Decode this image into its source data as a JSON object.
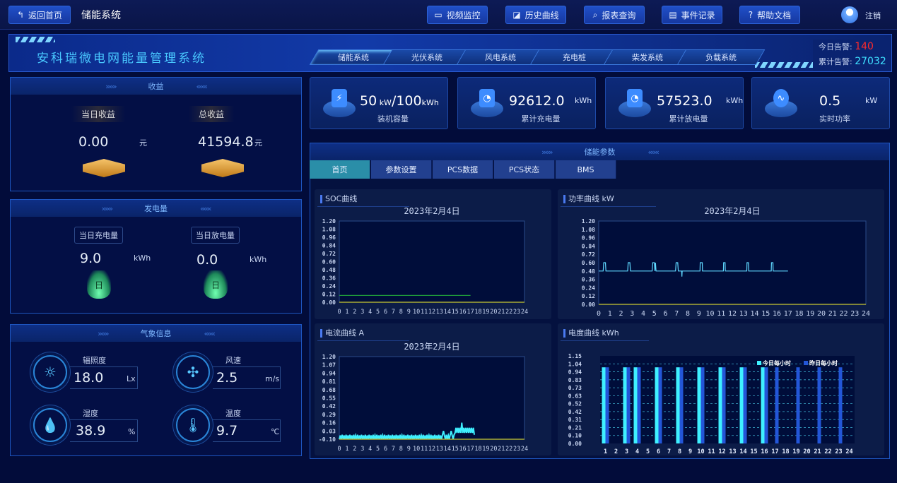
{
  "topbar": {
    "back_label": "返回首页",
    "page_title": "储能系统",
    "nav": [
      {
        "label": "视频监控",
        "icon": "video-icon"
      },
      {
        "label": "历史曲线",
        "icon": "chart-icon"
      },
      {
        "label": "报表查询",
        "icon": "search-icon"
      },
      {
        "label": "事件记录",
        "icon": "document-icon"
      },
      {
        "label": "帮助文档",
        "icon": "help-icon"
      }
    ],
    "logout_label": "注销"
  },
  "banner": {
    "title": "安科瑞微电网能量管理系统",
    "system_tabs": [
      "储能系统",
      "光伏系统",
      "风电系统",
      "充电桩",
      "柴发系统",
      "负载系统"
    ],
    "active_tab": 0,
    "alarm_today_label": "今日告警:",
    "alarm_today": "140",
    "alarm_total_label": "累计告警:",
    "alarm_total": "27032",
    "colors": {
      "alarm_today": "#ff2a2a",
      "alarm_total": "#3fe0ff"
    }
  },
  "income": {
    "title": "收益",
    "today_label": "当日收益",
    "today_value": "0.00",
    "today_unit": "元",
    "total_label": "总收益",
    "total_value": "41594.8",
    "total_unit": "元"
  },
  "generation": {
    "title": "发电量",
    "charge_label": "当日充电量",
    "charge_value": "9.0",
    "charge_unit": "kWh",
    "discharge_label": "当日放电量",
    "discharge_value": "0.0",
    "discharge_unit": "kWh",
    "icon_glyph": "日"
  },
  "weather": {
    "title": "气象信息",
    "items": [
      {
        "label": "辐照度",
        "value": "18.0",
        "unit": "Lx",
        "icon": "sun-icon"
      },
      {
        "label": "风速",
        "value": "2.5",
        "unit": "m/s",
        "icon": "fan-icon"
      },
      {
        "label": "湿度",
        "value": "38.9",
        "unit": "%",
        "icon": "humidity-icon"
      },
      {
        "label": "温度",
        "value": "9.7",
        "unit": "℃",
        "icon": "thermometer-icon"
      }
    ]
  },
  "kpis": [
    {
      "value": "50",
      "unit": "kW",
      "value2": "/100",
      "unit2": "kWh",
      "label": "装机容量",
      "icon": "battery-icon"
    },
    {
      "value": "92612.0",
      "unit": "kWh",
      "label": "累计充电量",
      "icon": "meter-icon"
    },
    {
      "value": "57523.0",
      "unit": "kWh",
      "label": "累计放电量",
      "icon": "meter-icon"
    },
    {
      "value": "0.5",
      "unit": "kW",
      "label": "实时功率",
      "icon": "pulse-icon"
    }
  ],
  "params": {
    "title": "储能参数",
    "tabs": [
      "首页",
      "参数设置",
      "PCS数据",
      "PCS状态",
      "BMS"
    ],
    "active_tab": 0
  },
  "chart_data": [
    {
      "type": "line",
      "panel_title": "SOC曲线",
      "title": "2023年2月4日",
      "ylim": [
        0,
        1.2
      ],
      "yticks": [
        "1.20",
        "1.08",
        "0.96",
        "0.84",
        "0.72",
        "0.60",
        "0.48",
        "0.36",
        "0.24",
        "0.12",
        "0.00"
      ],
      "xlim": [
        0,
        24
      ],
      "xticks": [
        "0",
        "1",
        "2",
        "3",
        "4",
        "5",
        "6",
        "7",
        "8",
        "9",
        "10",
        "11",
        "12",
        "13",
        "14",
        "15",
        "16",
        "17",
        "18",
        "19",
        "20",
        "21",
        "22",
        "23",
        "24"
      ],
      "series": [
        {
          "color": "#1f9a3a",
          "points": [
            [
              0,
              0.1
            ],
            [
              17,
              0.1
            ]
          ]
        },
        {
          "color": "#c8c832",
          "points": [
            [
              0,
              0
            ],
            [
              24,
              0
            ]
          ]
        }
      ]
    },
    {
      "type": "line",
      "panel_title": "功率曲线  kW",
      "title": "2023年2月4日",
      "ylim": [
        0,
        1.2
      ],
      "yticks": [
        "1.20",
        "1.08",
        "0.96",
        "0.84",
        "0.72",
        "0.60",
        "0.48",
        "0.36",
        "0.24",
        "0.12",
        "0.00"
      ],
      "xlim": [
        0,
        24
      ],
      "xticks": [
        "0",
        "1",
        "2",
        "3",
        "4",
        "5",
        "6",
        "7",
        "8",
        "9",
        "10",
        "11",
        "12",
        "13",
        "14",
        "15",
        "16",
        "17",
        "18",
        "19",
        "20",
        "21",
        "22",
        "23",
        "24"
      ],
      "series": [
        {
          "color": "#5fd8ff",
          "points": [
            [
              0,
              0.48
            ],
            [
              0.4,
              0.48
            ],
            [
              0.45,
              0.6
            ],
            [
              0.6,
              0.6
            ],
            [
              0.65,
              0.48
            ],
            [
              2.6,
              0.48
            ],
            [
              2.65,
              0.6
            ],
            [
              2.8,
              0.6
            ],
            [
              2.85,
              0.48
            ],
            [
              4.8,
              0.48
            ],
            [
              4.85,
              0.6
            ],
            [
              5.0,
              0.6
            ],
            [
              5.05,
              0.48
            ],
            [
              5.1,
              0.6
            ],
            [
              5.15,
              0.48
            ],
            [
              6.9,
              0.48
            ],
            [
              6.95,
              0.6
            ],
            [
              7.1,
              0.6
            ],
            [
              7.15,
              0.48
            ],
            [
              7.45,
              0.48
            ],
            [
              7.47,
              0.4
            ],
            [
              7.5,
              0.48
            ],
            [
              9.1,
              0.48
            ],
            [
              9.12,
              0.6
            ],
            [
              9.3,
              0.6
            ],
            [
              9.32,
              0.48
            ],
            [
              11.2,
              0.48
            ],
            [
              11.22,
              0.6
            ],
            [
              11.35,
              0.6
            ],
            [
              11.37,
              0.48
            ],
            [
              13.3,
              0.48
            ],
            [
              13.32,
              0.6
            ],
            [
              13.45,
              0.6
            ],
            [
              13.47,
              0.48
            ],
            [
              15.5,
              0.48
            ],
            [
              15.52,
              0.6
            ],
            [
              15.65,
              0.6
            ],
            [
              15.67,
              0.48
            ],
            [
              17,
              0.48
            ]
          ]
        },
        {
          "color": "#c8c832",
          "points": [
            [
              0,
              0
            ],
            [
              24,
              0
            ]
          ]
        }
      ]
    },
    {
      "type": "line",
      "panel_title": "电流曲线  A",
      "title": "2023年2月4日",
      "ylim": [
        -0.1,
        1.2
      ],
      "yticks": [
        "1.20",
        "1.07",
        "0.94",
        "0.81",
        "0.68",
        "0.55",
        "0.42",
        "0.29",
        "0.16",
        "0.03",
        "-0.10"
      ],
      "xlim": [
        0,
        24
      ],
      "xticks": [
        "0",
        "1",
        "2",
        "3",
        "4",
        "5",
        "6",
        "7",
        "8",
        "9",
        "10",
        "11",
        "12",
        "13",
        "14",
        "15",
        "16",
        "17",
        "18",
        "19",
        "20",
        "21",
        "22",
        "23",
        "24"
      ],
      "series": [
        {
          "color": "#3ff0ff",
          "step": 0.125,
          "start": 0,
          "values": [
            -0.1,
            -0.04,
            -0.1,
            -0.03,
            -0.1,
            -0.04,
            -0.1,
            -0.03,
            -0.1,
            -0.04,
            -0.1,
            -0.03,
            -0.1,
            -0.04,
            -0.1,
            -0.03,
            -0.1,
            -0.04,
            -0.1,
            -0.03,
            -0.1,
            -0.04,
            -0.1,
            -0.03,
            -0.1,
            -0.04,
            -0.1,
            -0.03,
            -0.1,
            -0.04,
            -0.1,
            -0.03,
            -0.1,
            -0.04,
            -0.1,
            -0.03,
            -0.1,
            -0.04,
            -0.1,
            -0.03,
            -0.1,
            -0.04,
            -0.1,
            -0.03,
            -0.1,
            -0.04,
            -0.1,
            -0.03,
            -0.1,
            -0.04,
            -0.1,
            -0.03,
            -0.1,
            -0.04,
            -0.1,
            -0.03,
            -0.1,
            -0.04,
            -0.1,
            -0.03,
            -0.1,
            -0.04,
            -0.1,
            -0.03,
            -0.1,
            -0.04,
            -0.1,
            -0.03,
            -0.1,
            -0.04,
            -0.1,
            -0.03,
            -0.1,
            -0.04,
            -0.1,
            -0.03,
            -0.1,
            -0.04,
            -0.1,
            -0.03,
            -0.1,
            -0.04,
            -0.1,
            -0.03,
            -0.1,
            -0.04,
            -0.1,
            -0.03,
            -0.1,
            -0.04,
            -0.1,
            -0.03,
            -0.1,
            -0.04,
            -0.1,
            -0.03,
            -0.1,
            -0.04,
            -0.1,
            -0.03,
            -0.1,
            -0.04,
            -0.1,
            -0.03,
            -0.1,
            -0.04,
            -0.1,
            -0.03,
            0.03,
            -0.04,
            -0.1,
            -0.03,
            -0.1,
            -0.04,
            -0.1,
            -0.03,
            0.03,
            -0.04,
            -0.1,
            -0.03,
            0.0,
            0.08,
            0.0,
            0.08,
            0.0,
            0.08,
            0.0,
            0.16,
            0.0,
            0.08,
            0.0,
            0.08,
            0.0,
            0.08,
            0.0,
            0.08,
            0.0,
            0.08,
            0.0,
            0.08,
            -0.03
          ]
        },
        {
          "color": "#c8c832",
          "points": [
            [
              0,
              -0.1
            ],
            [
              24,
              -0.1
            ]
          ]
        }
      ]
    },
    {
      "type": "bar",
      "panel_title": "电度曲线  kWh",
      "ylim": [
        0,
        1.15
      ],
      "yticks": [
        "1.15",
        "1.04",
        "0.94",
        "0.83",
        "0.73",
        "0.63",
        "0.52",
        "0.42",
        "0.31",
        "0.21",
        "0.10",
        "0.00"
      ],
      "categories": [
        "1",
        "2",
        "3",
        "4",
        "5",
        "6",
        "7",
        "8",
        "9",
        "10",
        "11",
        "12",
        "13",
        "14",
        "15",
        "16",
        "17",
        "18",
        "19",
        "20",
        "21",
        "22",
        "23",
        "24"
      ],
      "legend": "top-right",
      "grid": true,
      "series": [
        {
          "name": "今日每小时",
          "color": "#3ff0ff",
          "values": [
            1,
            0,
            1,
            1,
            0,
            1,
            0,
            1,
            0,
            1,
            0,
            1,
            0,
            1,
            0,
            1,
            0,
            0,
            0,
            0,
            0,
            0,
            0,
            0
          ]
        },
        {
          "name": "昨日每小时",
          "color": "#2356d8",
          "values": [
            1,
            0,
            1,
            1,
            0,
            1,
            0,
            1,
            0,
            1,
            0,
            1,
            0,
            1,
            0,
            1,
            1,
            0,
            1,
            0,
            1,
            0,
            1,
            0
          ]
        }
      ]
    }
  ]
}
